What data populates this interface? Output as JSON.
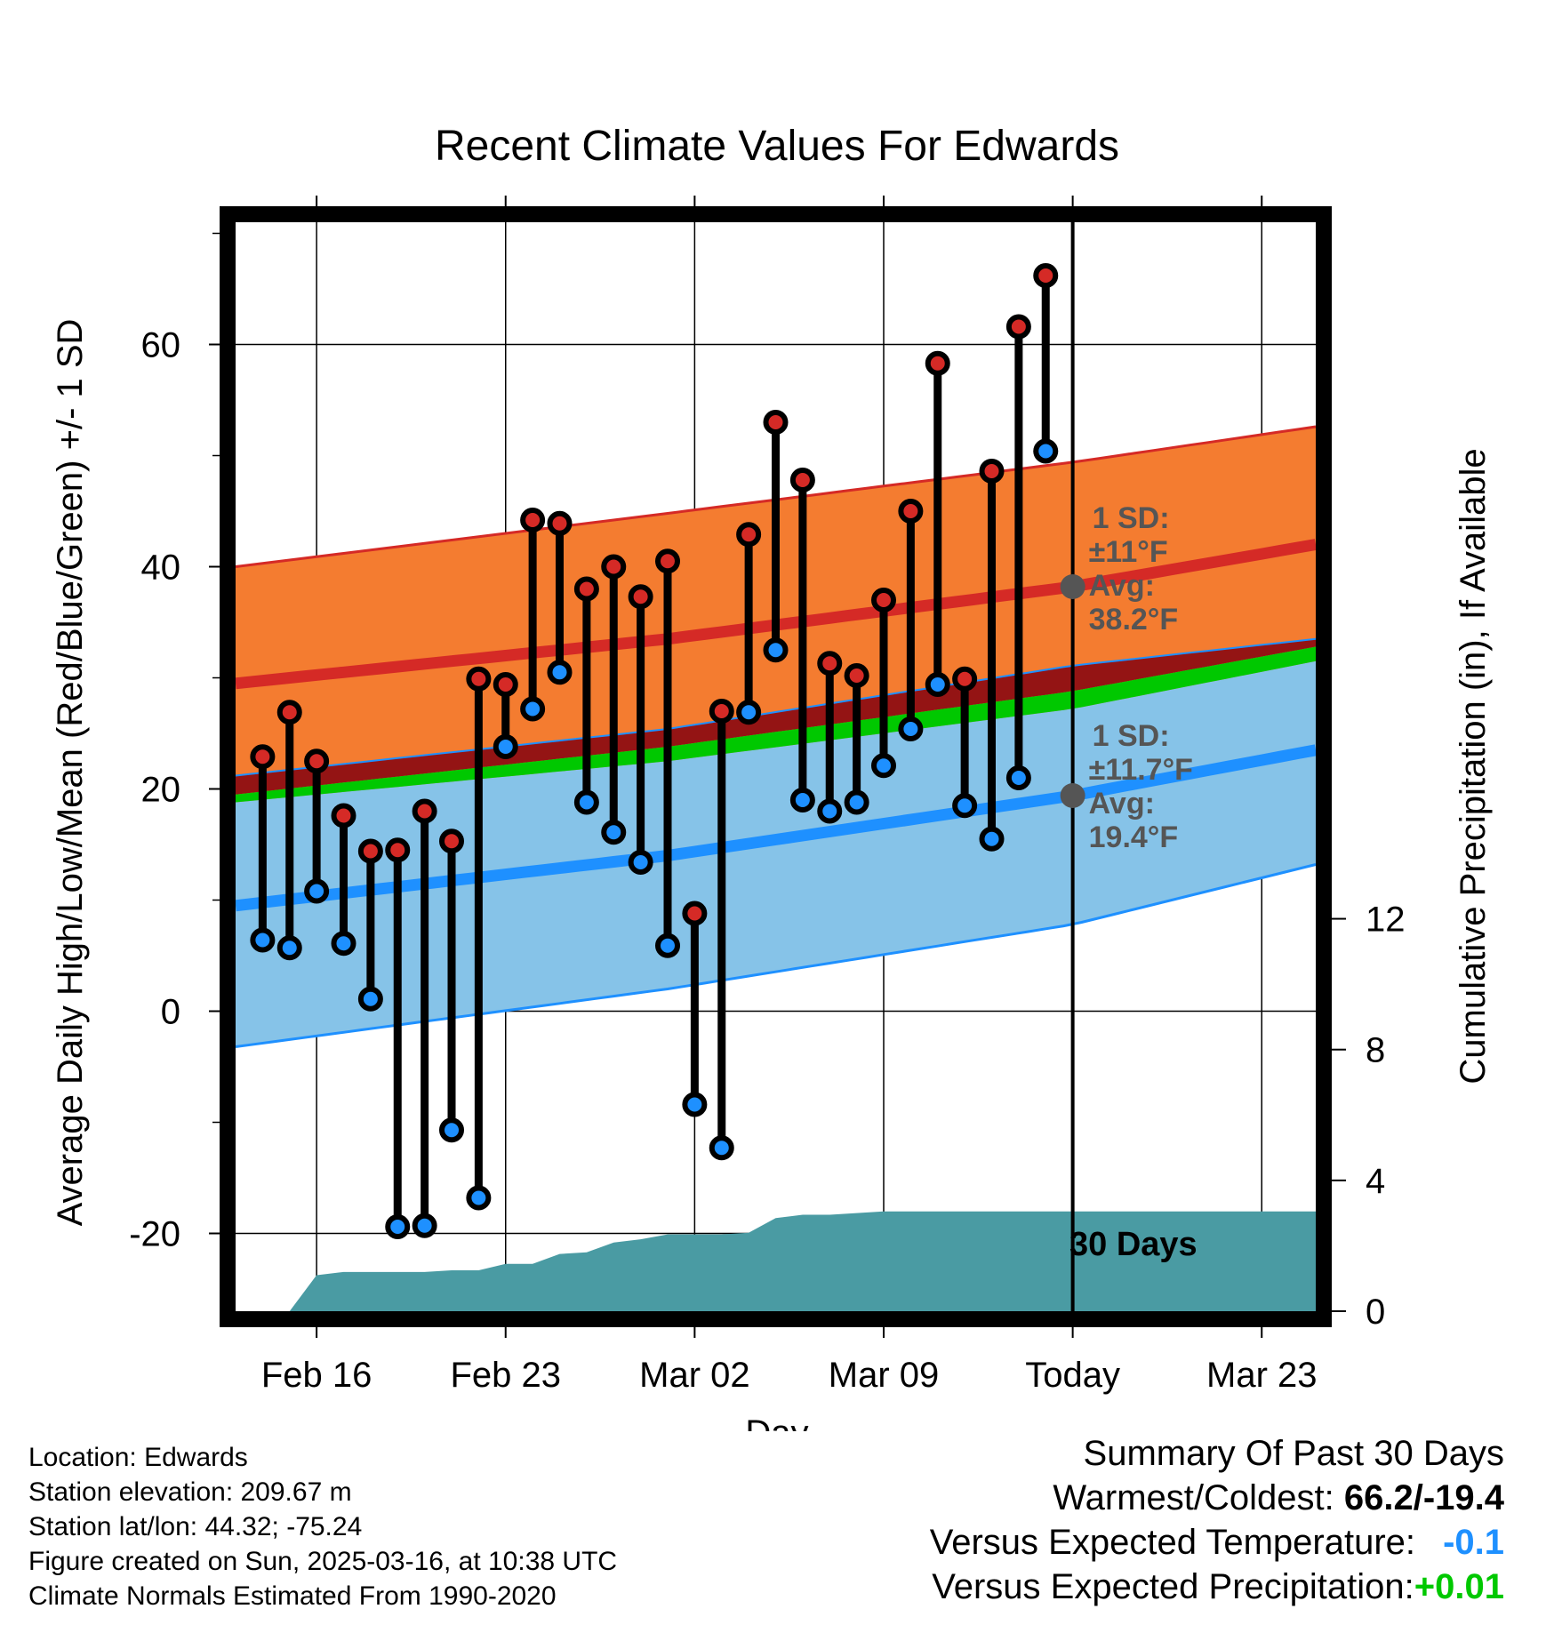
{
  "chart_data": {
    "type": "line",
    "title": "Recent Climate Values For Edwards",
    "xlabel": "Day",
    "ylabel_left": "Average Daily High/Low/Mean (Red/Blue/Green) +/- 1 SD",
    "ylabel_right": "Cumulative Precipitation (in), If Available",
    "x_ticks": [
      "Feb 16",
      "Feb 23",
      "Mar 02",
      "Mar 09",
      "Today",
      "Mar 23"
    ],
    "xlim": [
      "2025-02-13",
      "2025-03-25"
    ],
    "ylim_left": [
      -27,
      71
    ],
    "ylim_right": [
      0,
      33.3
    ],
    "y_ticks_left": [
      -20,
      0,
      20,
      40,
      60
    ],
    "y_ticks_right": [
      0,
      4,
      8,
      12
    ],
    "today": "2025-03-16",
    "today_label": "30 Days",
    "normals": {
      "dates": [
        "2025-02-13",
        "2025-03-01",
        "2025-03-16",
        "2025-03-25"
      ],
      "high_avg": [
        29.5,
        33.5,
        38.2,
        42.0
      ],
      "high_upper": [
        40.0,
        44.8,
        49.4,
        52.6
      ],
      "high_lower": [
        18.8,
        22.5,
        27.2,
        31.5
      ],
      "low_avg": [
        9.5,
        14.0,
        19.4,
        23.5
      ],
      "low_upper": [
        21.2,
        25.4,
        31.1,
        33.5
      ],
      "low_lower": [
        -3.2,
        2.0,
        7.8,
        13.2
      ],
      "mean_avg": [
        19.5,
        23.8,
        28.8,
        32.8
      ]
    },
    "high_annotation": [
      "1 SD:",
      "±11°F",
      "Avg:",
      "38.2°F"
    ],
    "low_annotation": [
      "1 SD:",
      "±11.7°F",
      "Avg:",
      "19.4°F"
    ],
    "daily": {
      "dates": [
        "2025-02-14",
        "2025-02-15",
        "2025-02-16",
        "2025-02-17",
        "2025-02-18",
        "2025-02-19",
        "2025-02-20",
        "2025-02-21",
        "2025-02-22",
        "2025-02-23",
        "2025-02-24",
        "2025-02-25",
        "2025-02-26",
        "2025-02-27",
        "2025-02-28",
        "2025-03-01",
        "2025-03-02",
        "2025-03-03",
        "2025-03-04",
        "2025-03-05",
        "2025-03-06",
        "2025-03-07",
        "2025-03-08",
        "2025-03-09",
        "2025-03-10",
        "2025-03-11",
        "2025-03-12",
        "2025-03-13",
        "2025-03-14",
        "2025-03-15"
      ],
      "high": [
        22.9,
        26.9,
        22.5,
        17.6,
        14.4,
        14.5,
        18.0,
        15.3,
        29.9,
        29.4,
        44.2,
        43.9,
        38.0,
        40.0,
        37.3,
        40.5,
        8.8,
        27.0,
        42.9,
        53.0,
        47.8,
        31.3,
        30.2,
        37.0,
        45.0,
        58.3,
        29.9,
        48.6,
        61.6,
        66.2
      ],
      "low": [
        6.4,
        5.7,
        10.8,
        6.1,
        1.1,
        -19.4,
        -19.3,
        -10.7,
        -16.8,
        23.8,
        27.2,
        30.5,
        18.8,
        16.1,
        13.4,
        5.9,
        -8.4,
        -12.3,
        26.9,
        32.5,
        19.0,
        18.0,
        18.8,
        22.1,
        25.4,
        29.4,
        18.5,
        15.5,
        21.0,
        50.4
      ]
    },
    "precip": {
      "dates": [
        "2025-02-14",
        "2025-02-15",
        "2025-02-16",
        "2025-02-17",
        "2025-02-18",
        "2025-02-19",
        "2025-02-20",
        "2025-02-21",
        "2025-02-22",
        "2025-02-23",
        "2025-02-24",
        "2025-02-25",
        "2025-02-26",
        "2025-02-27",
        "2025-02-28",
        "2025-03-01",
        "2025-03-02",
        "2025-03-03",
        "2025-03-04",
        "2025-03-05",
        "2025-03-06",
        "2025-03-07",
        "2025-03-08",
        "2025-03-09",
        "2025-03-10",
        "2025-03-11",
        "2025-03-12",
        "2025-03-13",
        "2025-03-14",
        "2025-03-15",
        "2025-03-25"
      ],
      "cumulative": [
        0,
        0,
        1.1,
        1.2,
        1.2,
        1.2,
        1.2,
        1.25,
        1.25,
        1.45,
        1.45,
        1.75,
        1.8,
        2.1,
        2.2,
        2.35,
        2.35,
        2.35,
        2.4,
        2.85,
        2.95,
        2.95,
        3.0,
        3.05,
        3.05,
        3.05,
        3.05,
        3.05,
        3.05,
        3.05,
        3.05
      ]
    },
    "colors": {
      "high_band": "#F47C30",
      "high_line": "#D52A26",
      "low_band": "#86C3E8",
      "low_line": "#1E90FF",
      "mean_band_high": "#941414",
      "mean_band_green": "#00C800",
      "precip_fill": "#4A9BA3",
      "high_marker": "#D52A26",
      "low_marker": "#1E90FF",
      "annotation": "#555555"
    },
    "grid": true
  },
  "footer": {
    "location": "Location: Edwards",
    "elevation": "Station elevation: 209.67 m",
    "latlon": "Station lat/lon: 44.32; -75.24",
    "created": "Figure created on Sun, 2025-03-16, at 10:38 UTC",
    "normals": "Climate Normals Estimated From 1990-2020"
  },
  "summary": {
    "title": "Summary Of Past 30 Days",
    "warm_cold_label": "Warmest/Coldest: ",
    "warm_cold_value": "66.2/-19.4",
    "temp_label": "Versus Expected Temperature:",
    "temp_value": "-0.1",
    "temp_color": "#1E90FF",
    "precip_label": "Versus Expected Precipitation:",
    "precip_value": "+0.01",
    "precip_color": "#00C800"
  }
}
